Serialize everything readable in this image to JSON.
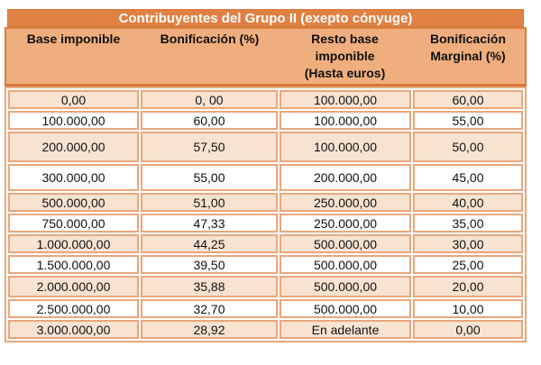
{
  "colors": {
    "title_bg": "#E08144",
    "title_text": "#FFFFFF",
    "header_bg": "#F0AE7E",
    "row_shaded_bg": "#F8E3D1",
    "row_white_bg": "#FFFFFF",
    "cell_border": "#E9A77B",
    "dark_border": "#D8783A",
    "text": "#111111"
  },
  "table": {
    "title": "Contribuyentes del Grupo II (exepto cónyuge)",
    "columns": [
      {
        "label": "Base imponible",
        "lines": [
          "Base imponible"
        ]
      },
      {
        "label": "Bonificación (%)",
        "lines": [
          "Bonificación (%)"
        ]
      },
      {
        "label": "Resto base imponible (Hasta euros)",
        "lines": [
          "Resto base",
          "imponible",
          "(Hasta euros)"
        ]
      },
      {
        "label": "Bonificación Marginal (%)",
        "lines": [
          "Bonificación",
          "Marginal (%)"
        ]
      }
    ],
    "rows": [
      [
        "0,00",
        "0, 00",
        "100.000,00",
        "60,00"
      ],
      [
        "100.000,00",
        "60,00",
        "100.000,00",
        "55,00"
      ],
      [
        "200.000,00",
        "57,50",
        "100.000,00",
        "50,00"
      ],
      [
        "300.000,00",
        "55,00",
        "200.000,00",
        "45,00"
      ],
      [
        "500.000,00",
        "51,00",
        "250.000,00",
        "40,00"
      ],
      [
        "750.000,00",
        "47,33",
        "250.000,00",
        "35,00"
      ],
      [
        "1.000.000,00",
        "44,25",
        "500.000,00",
        "30,00"
      ],
      [
        "1.500.000,00",
        "39,50",
        "500.000,00",
        "25,00"
      ],
      [
        "2.000.000,00",
        "35,88",
        "500.000,00",
        "20,00"
      ],
      [
        "2.500.000,00",
        "32,70",
        "500.000,00",
        "10,00"
      ],
      [
        "3.000.000,00",
        "28,92",
        "En adelante",
        "0,00"
      ]
    ]
  }
}
